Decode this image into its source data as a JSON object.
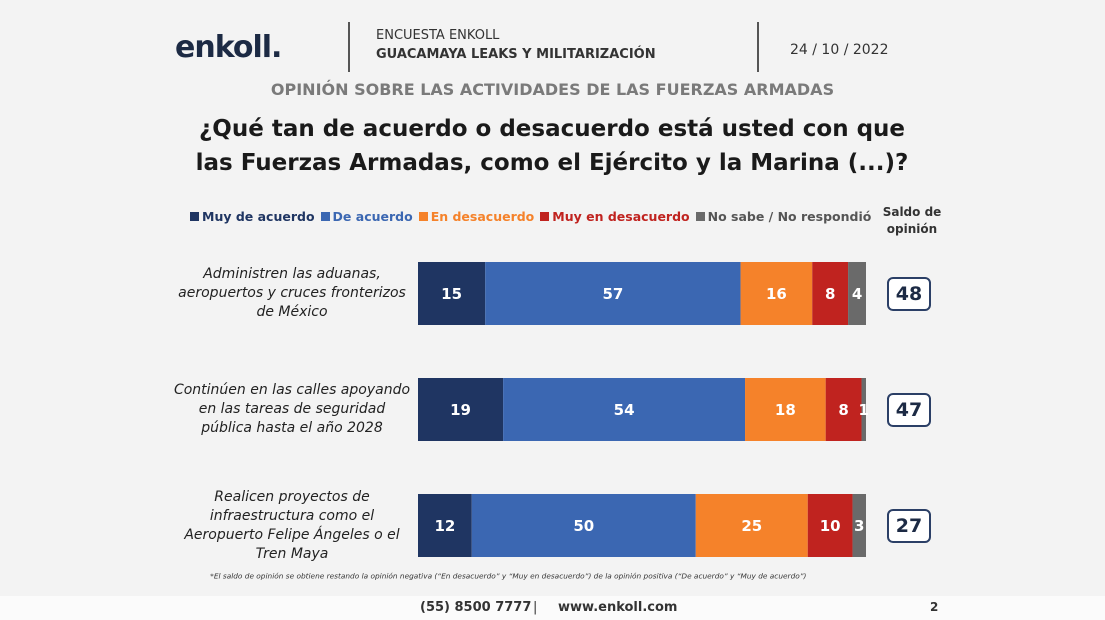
{
  "header": {
    "logo": "enkoll.",
    "survey": "ENCUESTA ENKOLL",
    "topic": "GUACAMAYA LEAKS Y MILITARIZACIÓN",
    "date": "24 / 10 / 2022"
  },
  "chart_data": {
    "type": "bar",
    "orientation": "horizontal",
    "stacked": true,
    "subtitle": "OPINIÓN SOBRE LAS ACTIVIDADES DE LAS FUERZAS ARMADAS",
    "title": "¿Qué tan de acuerdo o desacuerdo está usted con que las Fuerzas Armadas, como el Ejército y la Marina (...)?",
    "categories": [
      "Administren las aduanas, aeropuertos y cruces fronterizos de México",
      "Continúen en las calles apoyando en las tareas de seguridad pública hasta el año 2028",
      "Realicen proyectos de infraestructura como el Aeropuerto Felipe Ángeles o el Tren Maya"
    ],
    "series": [
      {
        "name": "Muy de acuerdo",
        "color": "#1f3562",
        "values": [
          15,
          19,
          12
        ]
      },
      {
        "name": "De acuerdo",
        "color": "#3b67b2",
        "values": [
          57,
          54,
          50
        ]
      },
      {
        "name": "En desacuerdo",
        "color": "#f5822a",
        "values": [
          16,
          18,
          25
        ]
      },
      {
        "name": "Muy en desacuerdo",
        "color": "#c0231f",
        "values": [
          8,
          8,
          10
        ]
      },
      {
        "name": "No sabe / No respondió",
        "color": "#6a6a6a",
        "values": [
          4,
          1,
          3
        ]
      }
    ],
    "xlim": [
      0,
      100
    ],
    "balance_label": "Saldo de opinión",
    "balance": [
      48,
      47,
      27
    ],
    "note": "*El saldo de opinión se obtiene restando la opinión negativa (“En desacuerdo” y “Muy en desacuerdo”) de la opinión positiva (“De acuerdo” y “Muy de acuerdo”)"
  },
  "footer": {
    "phone": "(55) 8500 7777",
    "separator": "|",
    "website": "www.enkoll.com",
    "page": "2"
  }
}
